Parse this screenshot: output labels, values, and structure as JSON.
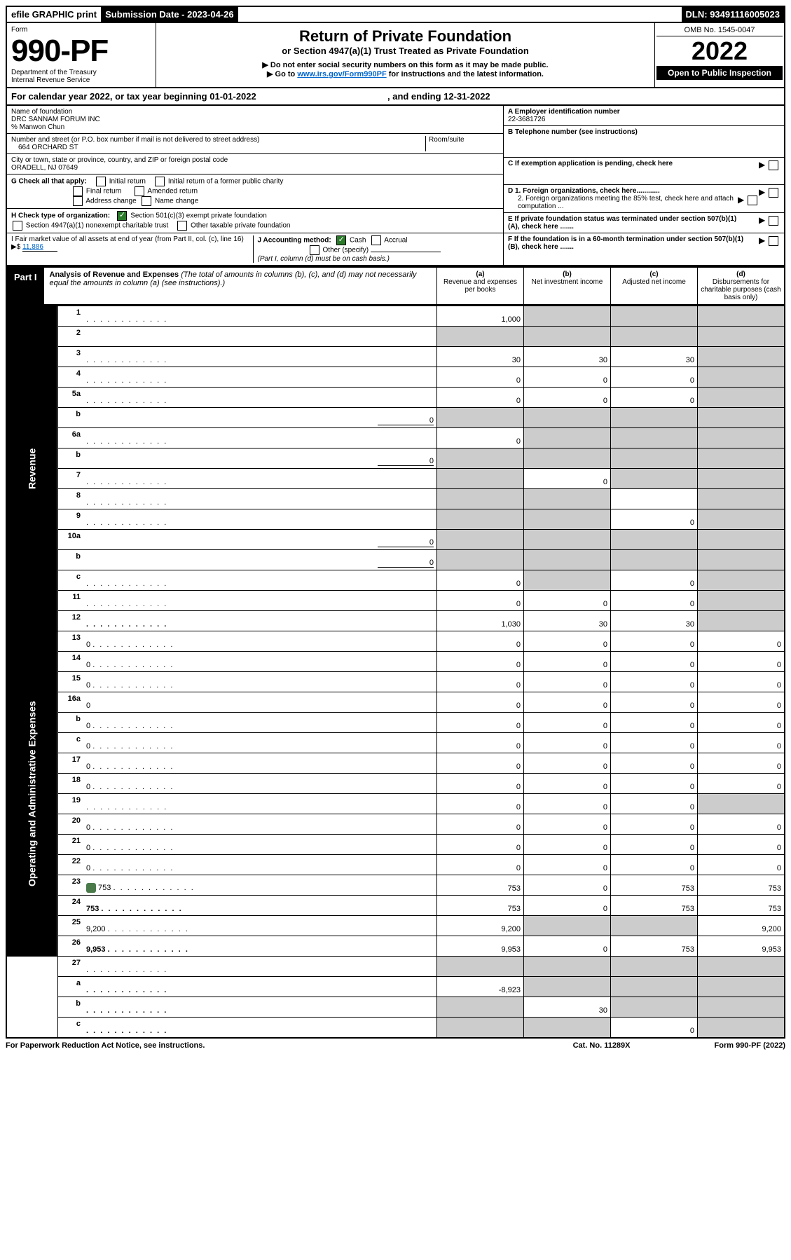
{
  "topbar": {
    "efile": "efile GRAPHIC print",
    "sub_label": "Submission Date - 2023-04-26",
    "dln": "DLN: 93491116005023"
  },
  "header": {
    "form_word": "Form",
    "form_num": "990-PF",
    "dept": "Department of the Treasury",
    "irs": "Internal Revenue Service",
    "title": "Return of Private Foundation",
    "subtitle": "or Section 4947(a)(1) Trust Treated as Private Foundation",
    "instr1": "▶ Do not enter social security numbers on this form as it may be made public.",
    "instr2_pre": "▶ Go to ",
    "instr2_link": "www.irs.gov/Form990PF",
    "instr2_post": " for instructions and the latest information.",
    "omb": "OMB No. 1545-0047",
    "year": "2022",
    "open": "Open to Public Inspection"
  },
  "calyear": {
    "text_pre": "For calendar year 2022, or tax year beginning ",
    "begin": "01-01-2022",
    "mid": " , and ending ",
    "end": "12-31-2022"
  },
  "ident": {
    "name_label": "Name of foundation",
    "name": "DRC SANNAM FORUM INC",
    "care_of": "% Manwon Chun",
    "addr_label": "Number and street (or P.O. box number if mail is not delivered to street address)",
    "addr": "664 ORCHARD ST",
    "room_label": "Room/suite",
    "city_label": "City or town, state or province, country, and ZIP or foreign postal code",
    "city": "ORADELL, NJ  07649",
    "a_label": "A Employer identification number",
    "a_val": "22-3681726",
    "b_label": "B Telephone number (see instructions)",
    "c_label": "C If exemption application is pending, check here",
    "g_label": "G Check all that apply:",
    "g1": "Initial return",
    "g2": "Initial return of a former public charity",
    "g3": "Final return",
    "g4": "Amended return",
    "g5": "Address change",
    "g6": "Name change",
    "h_label": "H Check type of organization:",
    "h1": "Section 501(c)(3) exempt private foundation",
    "h2": "Section 4947(a)(1) nonexempt charitable trust",
    "h3": "Other taxable private foundation",
    "i_label": "I Fair market value of all assets at end of year (from Part II, col. (c), line 16) ▶$ ",
    "i_val": "11,886",
    "j_label": "J Accounting method:",
    "j1": "Cash",
    "j2": "Accrual",
    "j3": "Other (specify)",
    "j_note": "(Part I, column (d) must be on cash basis.)",
    "d1": "D 1. Foreign organizations, check here............",
    "d2": "2. Foreign organizations meeting the 85% test, check here and attach computation ...",
    "e": "E   If private foundation status was terminated under section 507(b)(1)(A), check here .......",
    "f": "F   If the foundation is in a 60-month termination under section 507(b)(1)(B), check here .......",
    "arrow": "▶"
  },
  "part1": {
    "label": "Part I",
    "title": "Analysis of Revenue and Expenses",
    "note": " (The total of amounts in columns (b), (c), and (d) may not necessarily equal the amounts in column (a) (see instructions).)",
    "col_a": "(a)",
    "col_a_t": "Revenue and expenses per books",
    "col_b": "(b)",
    "col_b_t": "Net investment income",
    "col_c": "(c)",
    "col_c_t": "Adjusted net income",
    "col_d": "(d)",
    "col_d_t": "Disbursements for charitable purposes (cash basis only)"
  },
  "rows": [
    {
      "n": "1",
      "d": "",
      "a": "1,000",
      "b": "",
      "c": "",
      "gb": true,
      "gc": true,
      "gd": true
    },
    {
      "n": "2",
      "d": "",
      "a": "",
      "b": "",
      "c": "",
      "ga": true,
      "gb": true,
      "gc": true,
      "gd": true,
      "bold_not": true
    },
    {
      "n": "3",
      "d": "",
      "a": "30",
      "b": "30",
      "c": "30",
      "gd": true
    },
    {
      "n": "4",
      "d": "",
      "a": "0",
      "b": "0",
      "c": "0",
      "gd": true
    },
    {
      "n": "5a",
      "d": "",
      "a": "0",
      "b": "0",
      "c": "0",
      "gd": true
    },
    {
      "n": "b",
      "d": "",
      "inline": "0",
      "a": "",
      "b": "",
      "c": "",
      "ga": true,
      "gb": true,
      "gc": true,
      "gd": true
    },
    {
      "n": "6a",
      "d": "",
      "a": "0",
      "b": "",
      "c": "",
      "gb": true,
      "gc": true,
      "gd": true
    },
    {
      "n": "b",
      "d": "",
      "inline": "0",
      "a": "",
      "b": "",
      "c": "",
      "ga": true,
      "gb": true,
      "gc": true,
      "gd": true
    },
    {
      "n": "7",
      "d": "",
      "a": "",
      "b": "0",
      "c": "",
      "ga": true,
      "gc": true,
      "gd": true
    },
    {
      "n": "8",
      "d": "",
      "a": "",
      "b": "",
      "c": "",
      "ga": true,
      "gb": true,
      "gd": true
    },
    {
      "n": "9",
      "d": "",
      "a": "",
      "b": "",
      "c": "0",
      "ga": true,
      "gb": true,
      "gd": true
    },
    {
      "n": "10a",
      "d": "",
      "inline": "0",
      "a": "",
      "b": "",
      "c": "",
      "ga": true,
      "gb": true,
      "gc": true,
      "gd": true
    },
    {
      "n": "b",
      "d": "",
      "inline": "0",
      "a": "",
      "b": "",
      "c": "",
      "ga": true,
      "gb": true,
      "gc": true,
      "gd": true
    },
    {
      "n": "c",
      "d": "",
      "a": "0",
      "b": "",
      "c": "0",
      "gb": true,
      "gd": true
    },
    {
      "n": "11",
      "d": "",
      "a": "0",
      "b": "0",
      "c": "0",
      "gd": true
    },
    {
      "n": "12",
      "d": "",
      "a": "1,030",
      "b": "30",
      "c": "30",
      "bold": true,
      "gd": true
    }
  ],
  "exp_rows": [
    {
      "n": "13",
      "d": "0",
      "a": "0",
      "b": "0",
      "c": "0"
    },
    {
      "n": "14",
      "d": "0",
      "a": "0",
      "b": "0",
      "c": "0"
    },
    {
      "n": "15",
      "d": "0",
      "a": "0",
      "b": "0",
      "c": "0"
    },
    {
      "n": "16a",
      "d": "0",
      "a": "0",
      "b": "0",
      "c": "0"
    },
    {
      "n": "b",
      "d": "0",
      "a": "0",
      "b": "0",
      "c": "0"
    },
    {
      "n": "c",
      "d": "0",
      "a": "0",
      "b": "0",
      "c": "0"
    },
    {
      "n": "17",
      "d": "0",
      "a": "0",
      "b": "0",
      "c": "0"
    },
    {
      "n": "18",
      "d": "0",
      "a": "0",
      "b": "0",
      "c": "0"
    },
    {
      "n": "19",
      "d": "",
      "a": "0",
      "b": "0",
      "c": "0",
      "gd": true
    },
    {
      "n": "20",
      "d": "0",
      "a": "0",
      "b": "0",
      "c": "0"
    },
    {
      "n": "21",
      "d": "0",
      "a": "0",
      "b": "0",
      "c": "0"
    },
    {
      "n": "22",
      "d": "0",
      "a": "0",
      "b": "0",
      "c": "0"
    },
    {
      "n": "23",
      "d": "753",
      "a": "753",
      "b": "0",
      "c": "753",
      "icon": true
    },
    {
      "n": "24",
      "d": "753",
      "a": "753",
      "b": "0",
      "c": "753",
      "bold": true
    },
    {
      "n": "25",
      "d": "9,200",
      "a": "9,200",
      "b": "",
      "c": "",
      "gb": true,
      "gc": true
    },
    {
      "n": "26",
      "d": "9,953",
      "a": "9,953",
      "b": "0",
      "c": "753",
      "bold": true
    }
  ],
  "sub_rows": [
    {
      "n": "27",
      "d": "",
      "a": "",
      "b": "",
      "c": "",
      "ga": true,
      "gb": true,
      "gc": true,
      "gd": true
    },
    {
      "n": "a",
      "d": "",
      "a": "-8,923",
      "b": "",
      "c": "",
      "bold": true,
      "gb": true,
      "gc": true,
      "gd": true
    },
    {
      "n": "b",
      "d": "",
      "a": "",
      "b": "30",
      "c": "",
      "bold": true,
      "ga": true,
      "gc": true,
      "gd": true
    },
    {
      "n": "c",
      "d": "",
      "a": "",
      "b": "",
      "c": "0",
      "bold": true,
      "ga": true,
      "gb": true,
      "gd": true
    }
  ],
  "vlabels": {
    "rev": "Revenue",
    "exp": "Operating and Administrative Expenses"
  },
  "footer": {
    "left": "For Paperwork Reduction Act Notice, see instructions.",
    "mid": "Cat. No. 11289X",
    "right": "Form 990-PF (2022)"
  }
}
